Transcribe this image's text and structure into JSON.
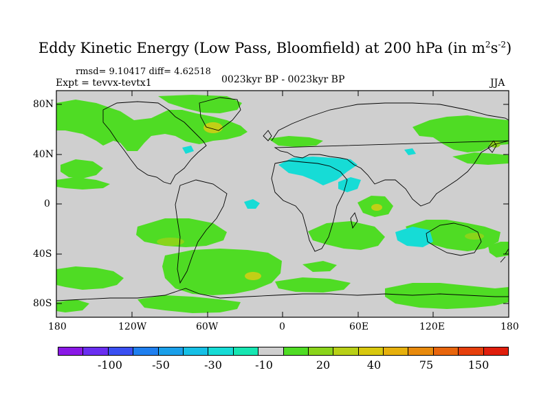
{
  "title": {
    "main": "Eddy Kinetic Energy (Low Pass, Bloomfield) at 200 hPa (in m",
    "sup1": "2",
    "mid": "s",
    "sup2": "-2",
    "end": ")"
  },
  "stats": "rmsd= 9.10417 diff= 4.62518",
  "expt": "Expt = tevvx-tevtx1",
  "period": "0023kyr BP - 0023kyr BP",
  "season": "JJA",
  "lat_ticks": [
    "80N",
    "40N",
    "0",
    "40S",
    "80S"
  ],
  "lon_ticks": [
    "180",
    "120W",
    "60W",
    "0",
    "60E",
    "120E",
    "180"
  ],
  "colorbar": {
    "colors": [
      "#8a18e6",
      "#6a2ef0",
      "#3a4ff2",
      "#1f7fef",
      "#1aa0ea",
      "#16c0e6",
      "#16dcd6",
      "#16e6b2",
      "#cfcfcf",
      "#4fdc24",
      "#8ad41a",
      "#b8d016",
      "#d8c80e",
      "#e6b00c",
      "#e88a0c",
      "#e8650c",
      "#e63f0c",
      "#e01e0c"
    ],
    "labels": [
      "-100",
      "-50",
      "-30",
      "-10",
      "20",
      "40",
      "75",
      "150"
    ]
  },
  "map_colors": {
    "ocean_bg": "#cfcfcf",
    "green": "#4fdc24",
    "light_green": "#8ad41a",
    "yellow_green": "#c2cf16",
    "cyan": "#16dcd6"
  }
}
